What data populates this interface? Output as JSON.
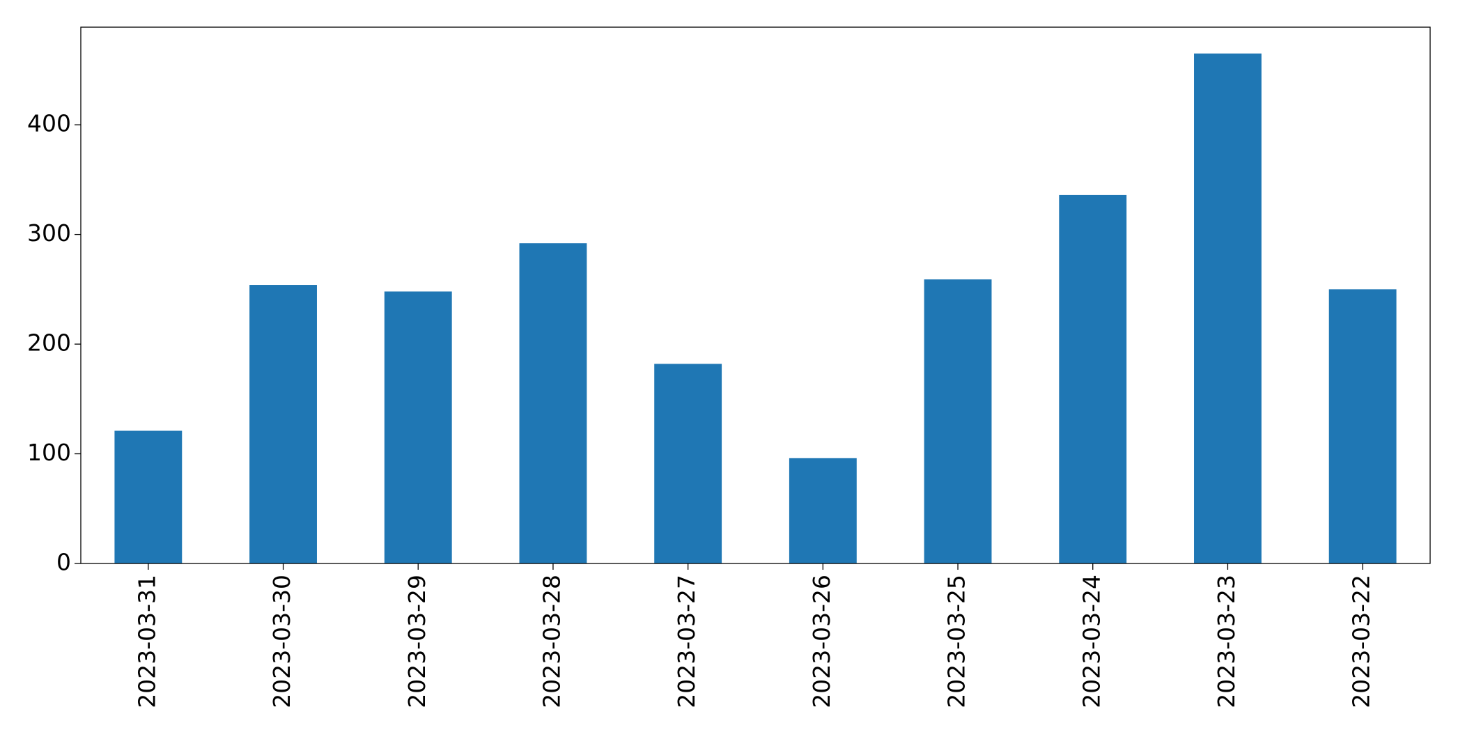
{
  "chart_data": {
    "type": "bar",
    "categories": [
      "2023-03-31",
      "2023-03-30",
      "2023-03-29",
      "2023-03-28",
      "2023-03-27",
      "2023-03-26",
      "2023-03-25",
      "2023-03-24",
      "2023-03-23",
      "2023-03-22"
    ],
    "values": [
      121,
      254,
      248,
      292,
      182,
      96,
      259,
      336,
      465,
      250
    ],
    "color": "#1f77b4",
    "ylim": [
      0,
      489
    ],
    "yticks": [
      0,
      100,
      200,
      300,
      400
    ],
    "grid": false
  }
}
